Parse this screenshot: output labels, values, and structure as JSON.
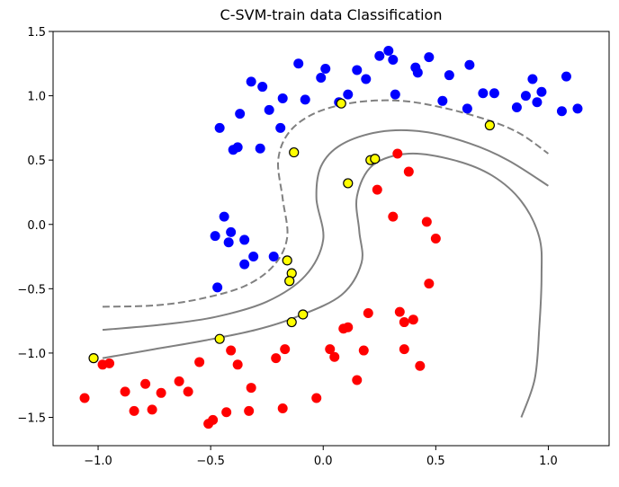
{
  "chart_data": {
    "type": "scatter",
    "title": "C-SVM-train data Classification",
    "xlabel": "",
    "ylabel": "",
    "xlim": [
      -1.2,
      1.27
    ],
    "ylim": [
      -1.72,
      1.5
    ],
    "xticks": [
      -1.0,
      -0.5,
      0.0,
      0.5,
      1.0
    ],
    "xtick_labels": [
      "−1.0",
      "−0.5",
      "0.0",
      "0.5",
      "1.0"
    ],
    "yticks": [
      1.5,
      1.0,
      0.5,
      0.0,
      -0.5,
      -1.0,
      -1.5
    ],
    "ytick_labels": [
      "1.5",
      "1.0",
      "0.5",
      "0.0",
      "−0.5",
      "−1.0",
      "−1.5"
    ],
    "colors": {
      "class_pos": "#0000ff",
      "class_neg": "#ff0000",
      "support_vector": "#ffff00",
      "boundary": "#808080"
    },
    "series": [
      {
        "name": "blue class",
        "points": [
          [
            -0.46,
            0.75
          ],
          [
            -0.4,
            0.58
          ],
          [
            -0.38,
            0.6
          ],
          [
            -0.37,
            0.86
          ],
          [
            -0.32,
            1.11
          ],
          [
            -0.27,
            1.07
          ],
          [
            -0.28,
            0.59
          ],
          [
            -0.24,
            0.89
          ],
          [
            -0.19,
            0.75
          ],
          [
            -0.18,
            0.98
          ],
          [
            -0.11,
            1.25
          ],
          [
            -0.08,
            0.97
          ],
          [
            -0.01,
            1.14
          ],
          [
            0.01,
            1.21
          ],
          [
            0.07,
            0.95
          ],
          [
            0.11,
            1.01
          ],
          [
            0.15,
            1.2
          ],
          [
            0.19,
            1.13
          ],
          [
            0.25,
            1.31
          ],
          [
            0.29,
            1.35
          ],
          [
            0.31,
            1.28
          ],
          [
            0.32,
            1.01
          ],
          [
            0.41,
            1.22
          ],
          [
            0.42,
            1.18
          ],
          [
            0.47,
            1.3
          ],
          [
            0.53,
            0.96
          ],
          [
            0.56,
            1.16
          ],
          [
            0.65,
            1.24
          ],
          [
            0.64,
            0.9
          ],
          [
            0.71,
            1.02
          ],
          [
            0.76,
            1.02
          ],
          [
            0.86,
            0.91
          ],
          [
            0.9,
            1.0
          ],
          [
            0.93,
            1.13
          ],
          [
            0.95,
            0.95
          ],
          [
            0.97,
            1.03
          ],
          [
            1.06,
            0.88
          ],
          [
            1.08,
            1.15
          ],
          [
            1.13,
            0.9
          ],
          [
            -0.44,
            0.06
          ],
          [
            -0.48,
            -0.09
          ],
          [
            -0.41,
            -0.06
          ],
          [
            -0.42,
            -0.14
          ],
          [
            -0.35,
            -0.12
          ],
          [
            -0.31,
            -0.25
          ],
          [
            -0.35,
            -0.31
          ],
          [
            -0.22,
            -0.25
          ],
          [
            -0.47,
            -0.49
          ]
        ]
      },
      {
        "name": "red class",
        "points": [
          [
            -1.06,
            -1.35
          ],
          [
            -0.98,
            -1.09
          ],
          [
            -0.95,
            -1.08
          ],
          [
            -0.88,
            -1.3
          ],
          [
            -0.84,
            -1.45
          ],
          [
            -0.79,
            -1.24
          ],
          [
            -0.76,
            -1.44
          ],
          [
            -0.72,
            -1.31
          ],
          [
            -0.64,
            -1.22
          ],
          [
            -0.6,
            -1.3
          ],
          [
            -0.55,
            -1.07
          ],
          [
            -0.51,
            -1.55
          ],
          [
            -0.49,
            -1.52
          ],
          [
            -0.43,
            -1.46
          ],
          [
            -0.41,
            -0.98
          ],
          [
            -0.38,
            -1.09
          ],
          [
            -0.33,
            -1.45
          ],
          [
            -0.32,
            -1.27
          ],
          [
            -0.21,
            -1.04
          ],
          [
            -0.18,
            -1.43
          ],
          [
            -0.17,
            -0.97
          ],
          [
            -0.03,
            -1.35
          ],
          [
            0.03,
            -0.97
          ],
          [
            0.05,
            -1.03
          ],
          [
            0.09,
            -0.81
          ],
          [
            0.11,
            -0.8
          ],
          [
            0.15,
            -1.21
          ],
          [
            0.18,
            -0.98
          ],
          [
            0.2,
            -0.69
          ],
          [
            0.34,
            -0.68
          ],
          [
            0.36,
            -0.76
          ],
          [
            0.36,
            -0.97
          ],
          [
            0.4,
            -0.74
          ],
          [
            0.43,
            -1.1
          ],
          [
            0.24,
            0.27
          ],
          [
            0.31,
            0.06
          ],
          [
            0.33,
            0.55
          ],
          [
            0.38,
            0.41
          ],
          [
            0.46,
            0.02
          ],
          [
            0.5,
            -0.11
          ],
          [
            0.47,
            -0.46
          ]
        ]
      },
      {
        "name": "support vectors",
        "points": [
          [
            -1.02,
            -1.04
          ],
          [
            -0.46,
            -0.89
          ],
          [
            -0.14,
            -0.76
          ],
          [
            -0.09,
            -0.7
          ],
          [
            -0.16,
            -0.28
          ],
          [
            -0.14,
            -0.38
          ],
          [
            -0.15,
            -0.44
          ],
          [
            -0.13,
            0.56
          ],
          [
            0.11,
            0.32
          ],
          [
            0.21,
            0.5
          ],
          [
            0.23,
            0.51
          ],
          [
            0.08,
            0.94
          ],
          [
            0.74,
            0.77
          ]
        ]
      }
    ],
    "decision_lines": [
      {
        "name": "margin upper",
        "style": "dashed",
        "points": [
          [
            -0.98,
            -0.64
          ],
          [
            -0.75,
            -0.63
          ],
          [
            -0.55,
            -0.58
          ],
          [
            -0.35,
            -0.48
          ],
          [
            -0.22,
            -0.32
          ],
          [
            -0.16,
            -0.1
          ],
          [
            -0.18,
            0.2
          ],
          [
            -0.2,
            0.5
          ],
          [
            -0.15,
            0.72
          ],
          [
            -0.03,
            0.87
          ],
          [
            0.15,
            0.95
          ],
          [
            0.35,
            0.96
          ],
          [
            0.55,
            0.9
          ],
          [
            0.75,
            0.8
          ],
          [
            0.88,
            0.7
          ],
          [
            1.0,
            0.55
          ]
        ]
      },
      {
        "name": "decision boundary",
        "style": "solid",
        "points": [
          [
            -0.98,
            -0.82
          ],
          [
            -0.72,
            -0.78
          ],
          [
            -0.48,
            -0.72
          ],
          [
            -0.25,
            -0.6
          ],
          [
            -0.08,
            -0.4
          ],
          [
            0.0,
            -0.12
          ],
          [
            -0.03,
            0.2
          ],
          [
            -0.01,
            0.45
          ],
          [
            0.08,
            0.62
          ],
          [
            0.25,
            0.72
          ],
          [
            0.45,
            0.72
          ],
          [
            0.65,
            0.63
          ],
          [
            0.82,
            0.5
          ],
          [
            1.0,
            0.3
          ]
        ]
      },
      {
        "name": "margin lower",
        "style": "solid",
        "points": [
          [
            -0.98,
            -1.04
          ],
          [
            -0.75,
            -0.97
          ],
          [
            -0.52,
            -0.9
          ],
          [
            -0.3,
            -0.82
          ],
          [
            -0.12,
            -0.72
          ],
          [
            0.08,
            -0.55
          ],
          [
            0.17,
            -0.3
          ],
          [
            0.16,
            -0.05
          ],
          [
            0.15,
            0.22
          ],
          [
            0.22,
            0.46
          ],
          [
            0.38,
            0.55
          ],
          [
            0.58,
            0.5
          ],
          [
            0.75,
            0.38
          ],
          [
            0.88,
            0.18
          ],
          [
            0.96,
            -0.1
          ],
          [
            0.97,
            -0.4
          ],
          [
            0.96,
            -0.8
          ],
          [
            0.94,
            -1.2
          ],
          [
            0.88,
            -1.5
          ]
        ]
      }
    ]
  }
}
